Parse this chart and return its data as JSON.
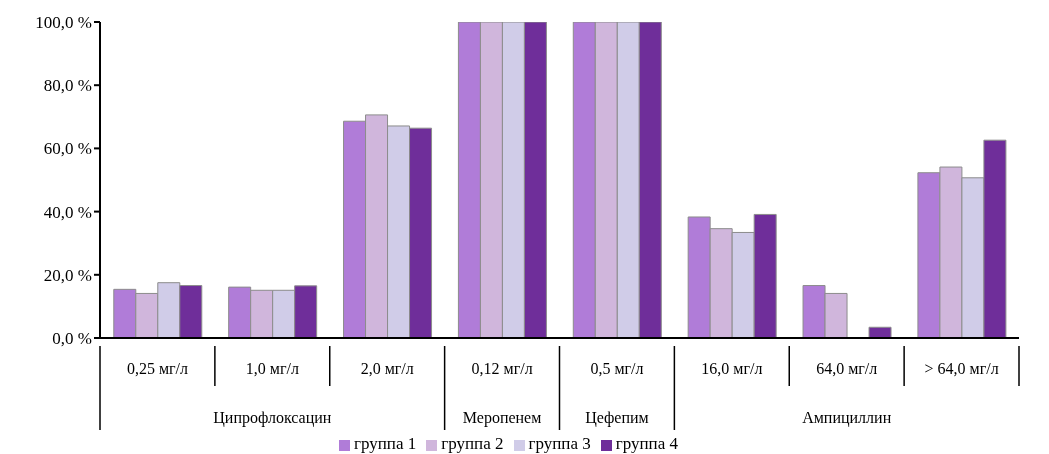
{
  "chart_data": {
    "type": "bar",
    "categories": [
      "0,25 мг/л",
      "1,0 мг/л",
      "2,0 мг/л",
      "0,12 мг/л",
      "0,5 мг/л",
      "16,0 мг/л",
      "64,0 мг/л",
      "> 64,0 мг/л"
    ],
    "series": [
      {
        "name": "группа 1",
        "color": "#b07cd8",
        "values": [
          15.4,
          16.1,
          68.6,
          100,
          100,
          38.3,
          16.6,
          52.3
        ]
      },
      {
        "name": "группа 2",
        "color": "#d0b6dc",
        "values": [
          14.1,
          15.1,
          70.6,
          100,
          100,
          34.6,
          14.1,
          54.1
        ]
      },
      {
        "name": "группа 3",
        "color": "#d0cce8",
        "values": [
          17.5,
          15.1,
          67.1,
          100,
          100,
          33.4,
          0,
          50.7
        ]
      },
      {
        "name": "группа 4",
        "color": "#6f2e9a",
        "values": [
          16.6,
          16.5,
          66.4,
          100,
          100,
          39.1,
          3.4,
          62.6
        ]
      }
    ],
    "ylim": [
      0,
      100
    ],
    "yticks": [
      {
        "value": 0,
        "label": "0,0 %"
      },
      {
        "value": 20,
        "label": "20,0 %"
      },
      {
        "value": 40,
        "label": "40,0 %"
      },
      {
        "value": 60,
        "label": "60,0 %"
      },
      {
        "value": 80,
        "label": "80,0 %"
      },
      {
        "value": 100,
        "label": "100,0 %"
      }
    ],
    "annotations": [
      "Ципрофлоксацин",
      "Меропенем",
      "Цефепим",
      "Ампициллин"
    ],
    "grid": false,
    "legend": "bottom"
  }
}
